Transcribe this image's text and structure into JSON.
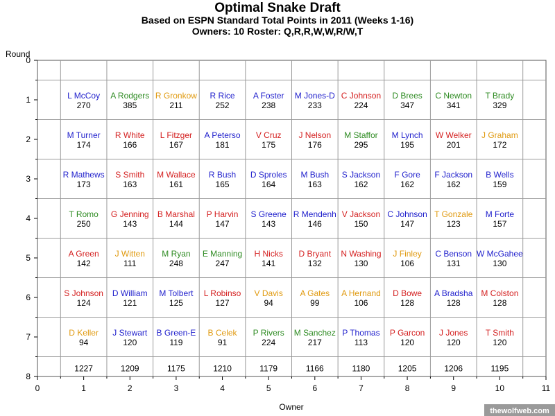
{
  "chart_data": {
    "type": "table",
    "title": "Optimal Snake Draft",
    "subtitle_lines": [
      "Based on ESPN Standard Total Points in 2011 (Weeks 1-16)",
      "Owners: 10  Roster: Q,R,R,W,W,R/W,T"
    ],
    "xlabel": "Owner",
    "ylabel": "Round",
    "xlim": [
      0,
      11
    ],
    "ylim": [
      0,
      8
    ],
    "x_ticks": [
      "0",
      "1",
      "2",
      "3",
      "4",
      "5",
      "6",
      "7",
      "8",
      "9",
      "10",
      "11"
    ],
    "y_ticks": [
      "0",
      "1",
      "2",
      "3",
      "4",
      "5",
      "6",
      "7",
      "8"
    ],
    "y_reversed": true,
    "grid": true,
    "watermark": "thewolfweb.com",
    "position_colors": {
      "QB": "#2e8b22",
      "RB": "#1f1fcc",
      "WR": "#d42020",
      "TE": "#e09a10"
    },
    "picks": [
      {
        "owner": 1,
        "round": 1,
        "name": "L McCoy",
        "points": "270",
        "pos": "RB"
      },
      {
        "owner": 2,
        "round": 1,
        "name": "A Rodgers",
        "points": "385",
        "pos": "QB"
      },
      {
        "owner": 3,
        "round": 1,
        "name": "R Gronkow",
        "points": "211",
        "pos": "TE"
      },
      {
        "owner": 4,
        "round": 1,
        "name": "R Rice",
        "points": "252",
        "pos": "RB"
      },
      {
        "owner": 5,
        "round": 1,
        "name": "A Foster",
        "points": "238",
        "pos": "RB"
      },
      {
        "owner": 6,
        "round": 1,
        "name": "M Jones-D",
        "points": "233",
        "pos": "RB"
      },
      {
        "owner": 7,
        "round": 1,
        "name": "C Johnson",
        "points": "224",
        "pos": "WR"
      },
      {
        "owner": 8,
        "round": 1,
        "name": "D Brees",
        "points": "347",
        "pos": "QB"
      },
      {
        "owner": 9,
        "round": 1,
        "name": "C Newton",
        "points": "341",
        "pos": "QB"
      },
      {
        "owner": 10,
        "round": 1,
        "name": "T Brady",
        "points": "329",
        "pos": "QB"
      },
      {
        "owner": 1,
        "round": 2,
        "name": "M Turner",
        "points": "174",
        "pos": "RB"
      },
      {
        "owner": 2,
        "round": 2,
        "name": "R White",
        "points": "166",
        "pos": "WR"
      },
      {
        "owner": 3,
        "round": 2,
        "name": "L Fitzger",
        "points": "167",
        "pos": "WR"
      },
      {
        "owner": 4,
        "round": 2,
        "name": "A Peterso",
        "points": "181",
        "pos": "RB"
      },
      {
        "owner": 5,
        "round": 2,
        "name": "V Cruz",
        "points": "175",
        "pos": "WR"
      },
      {
        "owner": 6,
        "round": 2,
        "name": "J Nelson",
        "points": "176",
        "pos": "WR"
      },
      {
        "owner": 7,
        "round": 2,
        "name": "M Staffor",
        "points": "295",
        "pos": "QB"
      },
      {
        "owner": 8,
        "round": 2,
        "name": "M Lynch",
        "points": "195",
        "pos": "RB"
      },
      {
        "owner": 9,
        "round": 2,
        "name": "W Welker",
        "points": "201",
        "pos": "WR"
      },
      {
        "owner": 10,
        "round": 2,
        "name": "J Graham",
        "points": "172",
        "pos": "TE"
      },
      {
        "owner": 1,
        "round": 3,
        "name": "R Mathews",
        "points": "173",
        "pos": "RB"
      },
      {
        "owner": 2,
        "round": 3,
        "name": "S Smith",
        "points": "163",
        "pos": "WR"
      },
      {
        "owner": 3,
        "round": 3,
        "name": "M Wallace",
        "points": "161",
        "pos": "WR"
      },
      {
        "owner": 4,
        "round": 3,
        "name": "R Bush",
        "points": "165",
        "pos": "RB"
      },
      {
        "owner": 5,
        "round": 3,
        "name": "D Sproles",
        "points": "164",
        "pos": "RB"
      },
      {
        "owner": 6,
        "round": 3,
        "name": "M Bush",
        "points": "163",
        "pos": "RB"
      },
      {
        "owner": 7,
        "round": 3,
        "name": "S Jackson",
        "points": "162",
        "pos": "RB"
      },
      {
        "owner": 8,
        "round": 3,
        "name": "F Gore",
        "points": "162",
        "pos": "RB"
      },
      {
        "owner": 9,
        "round": 3,
        "name": "F Jackson",
        "points": "162",
        "pos": "RB"
      },
      {
        "owner": 10,
        "round": 3,
        "name": "B Wells",
        "points": "159",
        "pos": "RB"
      },
      {
        "owner": 1,
        "round": 4,
        "name": "T Romo",
        "points": "250",
        "pos": "QB"
      },
      {
        "owner": 2,
        "round": 4,
        "name": "G Jenning",
        "points": "143",
        "pos": "WR"
      },
      {
        "owner": 3,
        "round": 4,
        "name": "B Marshal",
        "points": "144",
        "pos": "WR"
      },
      {
        "owner": 4,
        "round": 4,
        "name": "P Harvin",
        "points": "147",
        "pos": "WR"
      },
      {
        "owner": 5,
        "round": 4,
        "name": "S Greene",
        "points": "143",
        "pos": "RB"
      },
      {
        "owner": 6,
        "round": 4,
        "name": "R Mendenh",
        "points": "146",
        "pos": "RB"
      },
      {
        "owner": 7,
        "round": 4,
        "name": "V Jackson",
        "points": "150",
        "pos": "WR"
      },
      {
        "owner": 8,
        "round": 4,
        "name": "C Johnson",
        "points": "147",
        "pos": "RB"
      },
      {
        "owner": 9,
        "round": 4,
        "name": "T Gonzale",
        "points": "123",
        "pos": "TE"
      },
      {
        "owner": 10,
        "round": 4,
        "name": "M Forte",
        "points": "157",
        "pos": "RB"
      },
      {
        "owner": 1,
        "round": 5,
        "name": "A Green",
        "points": "142",
        "pos": "WR"
      },
      {
        "owner": 2,
        "round": 5,
        "name": "J Witten",
        "points": "111",
        "pos": "TE"
      },
      {
        "owner": 3,
        "round": 5,
        "name": "M Ryan",
        "points": "248",
        "pos": "QB"
      },
      {
        "owner": 4,
        "round": 5,
        "name": "E Manning",
        "points": "247",
        "pos": "QB"
      },
      {
        "owner": 5,
        "round": 5,
        "name": "H Nicks",
        "points": "141",
        "pos": "WR"
      },
      {
        "owner": 6,
        "round": 5,
        "name": "D Bryant",
        "points": "132",
        "pos": "WR"
      },
      {
        "owner": 7,
        "round": 5,
        "name": "N Washing",
        "points": "130",
        "pos": "WR"
      },
      {
        "owner": 8,
        "round": 5,
        "name": "J Finley",
        "points": "106",
        "pos": "TE"
      },
      {
        "owner": 9,
        "round": 5,
        "name": "C Benson",
        "points": "131",
        "pos": "RB"
      },
      {
        "owner": 10,
        "round": 5,
        "name": "W McGahee",
        "points": "130",
        "pos": "RB"
      },
      {
        "owner": 1,
        "round": 6,
        "name": "S Johnson",
        "points": "124",
        "pos": "WR"
      },
      {
        "owner": 2,
        "round": 6,
        "name": "D William",
        "points": "121",
        "pos": "RB"
      },
      {
        "owner": 3,
        "round": 6,
        "name": "M Tolbert",
        "points": "125",
        "pos": "RB"
      },
      {
        "owner": 4,
        "round": 6,
        "name": "L Robinso",
        "points": "127",
        "pos": "WR"
      },
      {
        "owner": 5,
        "round": 6,
        "name": "V Davis",
        "points": "94",
        "pos": "TE"
      },
      {
        "owner": 6,
        "round": 6,
        "name": "A Gates",
        "points": "99",
        "pos": "TE"
      },
      {
        "owner": 7,
        "round": 6,
        "name": "A Hernand",
        "points": "106",
        "pos": "TE"
      },
      {
        "owner": 8,
        "round": 6,
        "name": "D Bowe",
        "points": "128",
        "pos": "WR"
      },
      {
        "owner": 9,
        "round": 6,
        "name": "A Bradsha",
        "points": "128",
        "pos": "RB"
      },
      {
        "owner": 10,
        "round": 6,
        "name": "M Colston",
        "points": "128",
        "pos": "WR"
      },
      {
        "owner": 1,
        "round": 7,
        "name": "D Keller",
        "points": "94",
        "pos": "TE"
      },
      {
        "owner": 2,
        "round": 7,
        "name": "J Stewart",
        "points": "120",
        "pos": "RB"
      },
      {
        "owner": 3,
        "round": 7,
        "name": "B Green-E",
        "points": "119",
        "pos": "RB"
      },
      {
        "owner": 4,
        "round": 7,
        "name": "B Celek",
        "points": "91",
        "pos": "TE"
      },
      {
        "owner": 5,
        "round": 7,
        "name": "P Rivers",
        "points": "224",
        "pos": "QB"
      },
      {
        "owner": 6,
        "round": 7,
        "name": "M Sanchez",
        "points": "217",
        "pos": "QB"
      },
      {
        "owner": 7,
        "round": 7,
        "name": "P Thomas",
        "points": "113",
        "pos": "RB"
      },
      {
        "owner": 8,
        "round": 7,
        "name": "P Garcon",
        "points": "120",
        "pos": "WR"
      },
      {
        "owner": 9,
        "round": 7,
        "name": "J Jones",
        "points": "120",
        "pos": "WR"
      },
      {
        "owner": 10,
        "round": 7,
        "name": "T Smith",
        "points": "120",
        "pos": "WR"
      }
    ],
    "totals": [
      {
        "owner": 1,
        "value": "1227"
      },
      {
        "owner": 2,
        "value": "1209"
      },
      {
        "owner": 3,
        "value": "1175"
      },
      {
        "owner": 4,
        "value": "1210"
      },
      {
        "owner": 5,
        "value": "1179"
      },
      {
        "owner": 6,
        "value": "1166"
      },
      {
        "owner": 7,
        "value": "1180"
      },
      {
        "owner": 8,
        "value": "1205"
      },
      {
        "owner": 9,
        "value": "1206"
      },
      {
        "owner": 10,
        "value": "1195"
      }
    ]
  }
}
